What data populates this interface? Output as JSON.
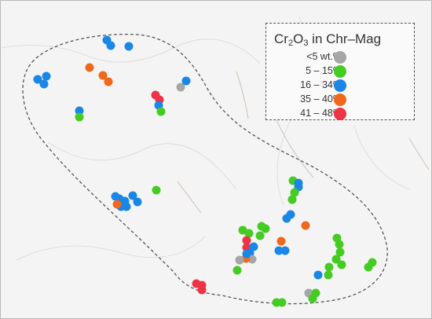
{
  "legend": {
    "title_pre": "Cr",
    "title_sub1": "2",
    "title_mid": "O",
    "title_sub2": "3",
    "title_post": " in Chr–Mag",
    "items": [
      {
        "label": "<5 wt.%",
        "color": "#a6a6a6",
        "icon": "gray-circle-marker"
      },
      {
        "label": "5 – 15%",
        "color": "#44cc22",
        "icon": "green-circle-marker"
      },
      {
        "label": "16 – 34%",
        "color": "#1a86e6",
        "icon": "blue-circle-marker"
      },
      {
        "label": "35 – 40%",
        "color": "#f0691a",
        "icon": "orange-circle-marker"
      },
      {
        "label": "41 – 48%",
        "color": "#ee3344",
        "icon": "red-circle-marker"
      }
    ]
  },
  "map": {
    "background": "#f4f4f4",
    "boundary_style": "dashed"
  }
}
